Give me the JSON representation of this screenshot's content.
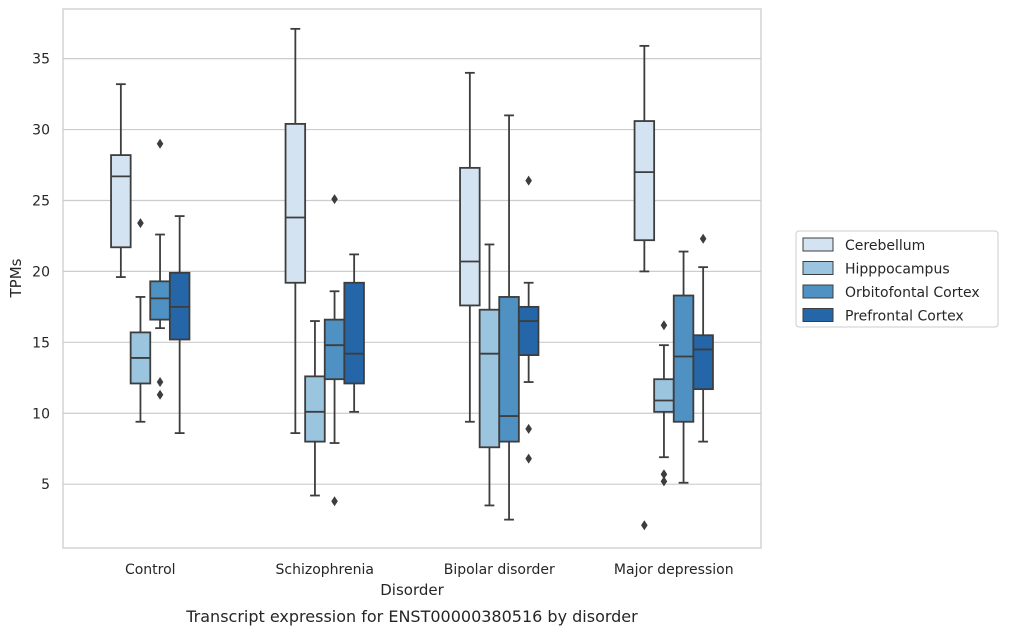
{
  "caption": "Transcript expression for ENST00000380516 by disorder",
  "chart_data": {
    "type": "box",
    "xlabel": "Disorder",
    "ylabel": "TPMs",
    "ylim": [
      0.5,
      38.5
    ],
    "yticks": [
      5,
      10,
      15,
      20,
      25,
      30,
      35
    ],
    "grid": "horizontal",
    "legend_position": "right",
    "categories": [
      "Control",
      "Schizophrenia",
      "Bipolar disorder",
      "Major depression"
    ],
    "series": [
      {
        "name": "Cerebellum",
        "color": "#d4e3f2",
        "boxes": [
          {
            "whisker_low": 19.6,
            "q1": 21.7,
            "median": 26.7,
            "q3": 28.2,
            "whisker_high": 33.2,
            "outliers": []
          },
          {
            "whisker_low": 8.6,
            "q1": 19.2,
            "median": 23.8,
            "q3": 30.4,
            "whisker_high": 37.1,
            "outliers": []
          },
          {
            "whisker_low": 9.4,
            "q1": 17.6,
            "median": 20.7,
            "q3": 27.3,
            "whisker_high": 34.0,
            "outliers": []
          },
          {
            "whisker_low": 20.0,
            "q1": 22.2,
            "median": 27.0,
            "q3": 30.6,
            "whisker_high": 35.9,
            "outliers": [
              2.1
            ]
          }
        ]
      },
      {
        "name": "Hipppocampus",
        "color": "#9bc4df",
        "boxes": [
          {
            "whisker_low": 9.4,
            "q1": 12.1,
            "median": 13.9,
            "q3": 15.7,
            "whisker_high": 18.2,
            "outliers": [
              23.4
            ]
          },
          {
            "whisker_low": 4.2,
            "q1": 8.0,
            "median": 10.1,
            "q3": 12.6,
            "whisker_high": 16.5,
            "outliers": []
          },
          {
            "whisker_low": 3.5,
            "q1": 7.6,
            "median": 14.2,
            "q3": 17.3,
            "whisker_high": 21.9,
            "outliers": []
          },
          {
            "whisker_low": 6.9,
            "q1": 10.1,
            "median": 10.9,
            "q3": 12.4,
            "whisker_high": 14.8,
            "outliers": [
              16.2,
              5.7,
              5.2
            ]
          }
        ]
      },
      {
        "name": "Orbitofontal Cortex",
        "color": "#4f91c2",
        "boxes": [
          {
            "whisker_low": 16.0,
            "q1": 16.6,
            "median": 18.1,
            "q3": 19.3,
            "whisker_high": 22.6,
            "outliers": [
              29.0,
              12.2,
              11.3
            ]
          },
          {
            "whisker_low": 7.9,
            "q1": 12.4,
            "median": 14.8,
            "q3": 16.6,
            "whisker_high": 18.6,
            "outliers": [
              25.1,
              3.8
            ]
          },
          {
            "whisker_low": 2.5,
            "q1": 8.0,
            "median": 9.8,
            "q3": 18.2,
            "whisker_high": 31.0,
            "outliers": []
          },
          {
            "whisker_low": 5.1,
            "q1": 9.4,
            "median": 14.0,
            "q3": 18.3,
            "whisker_high": 21.4,
            "outliers": []
          }
        ]
      },
      {
        "name": "Prefrontal Cortex",
        "color": "#2466a8",
        "boxes": [
          {
            "whisker_low": 8.6,
            "q1": 15.2,
            "median": 17.5,
            "q3": 19.9,
            "whisker_high": 23.9,
            "outliers": []
          },
          {
            "whisker_low": 10.1,
            "q1": 12.1,
            "median": 14.2,
            "q3": 19.2,
            "whisker_high": 21.2,
            "outliers": []
          },
          {
            "whisker_low": 12.2,
            "q1": 14.1,
            "median": 16.5,
            "q3": 17.5,
            "whisker_high": 19.2,
            "outliers": [
              26.4,
              8.9,
              6.8
            ]
          },
          {
            "whisker_low": 8.0,
            "q1": 11.7,
            "median": 14.5,
            "q3": 15.5,
            "whisker_high": 20.3,
            "outliers": [
              22.3
            ]
          }
        ]
      }
    ]
  }
}
